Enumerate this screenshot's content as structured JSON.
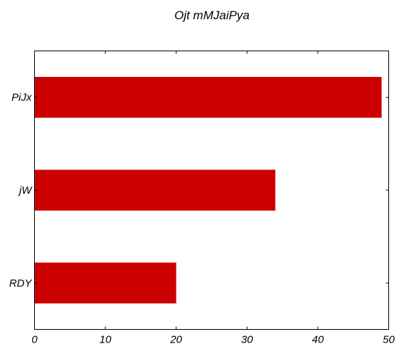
{
  "chart_data": {
    "type": "bar",
    "orientation": "horizontal",
    "title": "Ojt mMJaiPya",
    "xlabel": "",
    "ylabel": "",
    "categories": [
      "PiJx",
      "jW",
      "RDY"
    ],
    "values": [
      49,
      34,
      20
    ],
    "xlim": [
      0,
      50
    ],
    "xticks": [
      0,
      10,
      20,
      30,
      40,
      50
    ],
    "bar_color": "#cc0000",
    "grid": false,
    "legend": "none"
  }
}
